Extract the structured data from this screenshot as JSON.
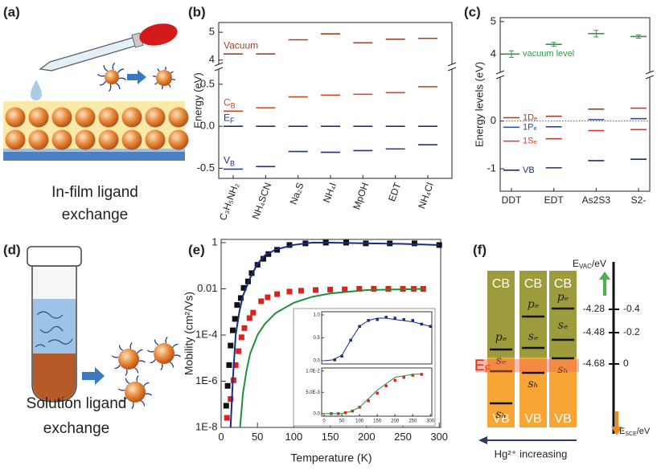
{
  "panels": {
    "a": {
      "label": "(a)",
      "caption": [
        "In-film ligand",
        "exchange"
      ]
    },
    "b": {
      "label": "(b)"
    },
    "c": {
      "label": "(c)"
    },
    "d": {
      "label": "(d)",
      "caption": [
        "Solution ligand",
        "exchange"
      ]
    },
    "e": {
      "label": "(e)"
    },
    "f": {
      "label": "(f)",
      "columns": [
        {
          "top": "CB",
          "bottom": "VB",
          "levels": [
            "pₑ",
            "sₑ",
            "sₕ"
          ]
        },
        {
          "top": "CB",
          "bottom": "VB",
          "levels": [
            "pₑ",
            "sₑ",
            "sₕ"
          ]
        },
        {
          "top": "CB",
          "bottom": "VB",
          "levels": [
            "pₑ",
            "sₑ",
            "sₕ"
          ]
        }
      ],
      "fermi": {
        "symbol": "E",
        "sub": "F"
      },
      "vac_axis": {
        "symbol": "E",
        "sub": "VAC",
        "unit": "/eV",
        "ticks": [
          "-4.28",
          "-4.48",
          "-4.68"
        ]
      },
      "sce_axis": {
        "symbol": "E",
        "sub": "SCE",
        "unit": "/eV",
        "ticks": [
          "-0.4",
          "-0.2",
          "0"
        ]
      },
      "trend": "Hg²⁺ increasing"
    }
  },
  "chart_data": [
    {
      "type": "levels",
      "ylabel": "Energy (eV)",
      "categories": [
        "C₃H₅NH₂",
        "NH₄SCN",
        "Na₂S",
        "NH₄I",
        "MpOH",
        "EDT",
        "NH₄Cl"
      ],
      "ylim": [
        -0.62,
        0.68
      ],
      "yticks": [
        -0.5,
        {
          "value": 0,
          "label": "0.0"
        },
        0.5
      ],
      "y2lim": [
        3.85,
        5.35
      ],
      "y2ticks": [
        4,
        5
      ],
      "series": [
        {
          "name": "Vacuum",
          "color": "#a0412b",
          "axis": "y2",
          "values": [
            4.22,
            4.22,
            4.73,
            4.94,
            4.62,
            4.75,
            4.78
          ]
        },
        {
          "name": "CB",
          "color": "#cc4526",
          "values": [
            0.18,
            0.22,
            0.35,
            0.37,
            0.38,
            0.4,
            0.47
          ]
        },
        {
          "name": "EF",
          "color": "#1f2f8a",
          "values": [
            0,
            0,
            0,
            0,
            0,
            0,
            0
          ]
        },
        {
          "name": "VB",
          "color": "#1f2f8a",
          "values": [
            -0.51,
            -0.48,
            -0.3,
            -0.31,
            -0.29,
            -0.27,
            -0.22
          ]
        }
      ]
    },
    {
      "type": "levels",
      "ylabel": "Energy levels (eV)",
      "categories": [
        "DDT",
        "EDT",
        "As2S3",
        "S2-"
      ],
      "ylim": [
        -1.47,
        0.92
      ],
      "yticks": [
        -1,
        0
      ],
      "y2lim": [
        3.44,
        5.12
      ],
      "y2ticks": [
        4,
        5
      ],
      "reference_line": 0,
      "series": [
        {
          "name": "vacuum level",
          "color": "#2e9a48",
          "axis": "y2",
          "values": [
            4.0,
            4.3,
            4.63,
            4.54
          ],
          "errors": [
            0.1,
            0.06,
            0.1,
            0.05
          ]
        },
        {
          "name": "1Dₑ",
          "color": "#a0412b",
          "values": [
            0.07,
            0.1,
            0.25,
            0.27
          ]
        },
        {
          "name": "1Pₑ",
          "color": "#2b4aa0",
          "values": [
            -0.13,
            -0.12,
            0.03,
            0.05
          ]
        },
        {
          "name": "1Sₑ",
          "color": "#d83a2a",
          "values": [
            -0.42,
            -0.37,
            -0.2,
            -0.18
          ]
        },
        {
          "name": "VB",
          "color": "#1f2f6a",
          "values": [
            -1.03,
            -0.98,
            -0.83,
            -0.8
          ]
        }
      ]
    },
    {
      "type": "scatter",
      "xlabel": "Temperature (K)",
      "ylabel": "Mobility (cm²/Vs)",
      "yscale": "log",
      "xlim": [
        0,
        302
      ],
      "xticks": [
        0,
        50,
        100,
        150,
        200,
        250,
        300
      ],
      "ylim": [
        1e-08,
        1.38
      ],
      "yticks": [
        {
          "value": 1e-08,
          "label": "1E-8"
        },
        {
          "value": 1e-06,
          "label": "1E-6"
        },
        {
          "value": 0.0001,
          "label": "1E-4"
        },
        0.01,
        1
      ],
      "series": [
        {
          "mode": "markers",
          "color": "#111111",
          "x": [
            7,
            9,
            11,
            13,
            16,
            19,
            22,
            27,
            31,
            37,
            42,
            50,
            58,
            65,
            77,
            94,
            116,
            144,
            172,
            199,
            232,
            266,
            300
          ],
          "values": [
            8.7e-08,
            6.3e-07,
            5e-06,
            3.5e-05,
            0.00016,
            0.0005,
            0.002,
            0.004,
            0.011,
            0.021,
            0.048,
            0.11,
            0.2,
            0.32,
            0.49,
            0.79,
            0.93,
            1,
            1,
            0.93,
            0.93,
            0.93,
            0.79
          ]
        },
        {
          "mode": "markers",
          "color": "#e0201a",
          "x": [
            8,
            13,
            17,
            20,
            24,
            28,
            32,
            39,
            44,
            55,
            64,
            77,
            94,
            110,
            130,
            150,
            170,
            190,
            210,
            230,
            250,
            265,
            278
          ],
          "values": [
            2.6e-08,
            1.7e-07,
            1.1e-06,
            5e-06,
            2e-05,
            8e-05,
            0.0002,
            0.00054,
            0.00093,
            0.0029,
            0.0043,
            0.0059,
            0.0076,
            0.0083,
            0.0089,
            0.0093,
            0.0095,
            0.01,
            0.01,
            0.01,
            0.01,
            0.01,
            0.01
          ]
        },
        {
          "mode": "line",
          "color": "#1a2a8a",
          "x": [
            13,
            16,
            20,
            25,
            30,
            40,
            50,
            60,
            75,
            100,
            125,
            150,
            200,
            250,
            300
          ],
          "values": [
            1e-08,
            1e-06,
            0.0001,
            0.001,
            0.005,
            0.03,
            0.12,
            0.28,
            0.5,
            0.8,
            1,
            1,
            0.93,
            0.89,
            0.79
          ]
        },
        {
          "mode": "line",
          "color": "#1f8f3a",
          "x": [
            26,
            30,
            35,
            40,
            50,
            60,
            75,
            100,
            125,
            150,
            200,
            250,
            280
          ],
          "values": [
            1e-08,
            3e-07,
            3e-06,
            1.6e-05,
            0.0001,
            0.0003,
            0.0009,
            0.0025,
            0.0045,
            0.0063,
            0.0089,
            0.0095,
            0.01
          ]
        }
      ]
    },
    {
      "type": "scatter",
      "xlim": [
        -7,
        304
      ],
      "ylim": [
        -0.07,
        1.07
      ],
      "yticks": [
        {
          "value": 0,
          "label": "0.0"
        },
        0.5,
        {
          "value": 1,
          "label": "1.0"
        }
      ],
      "series": [
        {
          "mode": "markers",
          "color": "#1a2a8a",
          "x": [
            30,
            50,
            75,
            100,
            125,
            150,
            175,
            200,
            225,
            250,
            275,
            300
          ],
          "values": [
            0.02,
            0.1,
            0.45,
            0.75,
            0.88,
            0.9,
            0.95,
            0.93,
            0.9,
            0.88,
            0.8,
            0.75
          ]
        },
        {
          "mode": "line",
          "color": "#1a2a8a",
          "x": [
            0,
            25,
            50,
            75,
            100,
            125,
            150,
            175,
            200,
            250,
            300
          ],
          "values": [
            0,
            0.02,
            0.12,
            0.45,
            0.75,
            0.88,
            0.93,
            0.93,
            0.9,
            0.85,
            0.75
          ]
        }
      ]
    },
    {
      "type": "scatter",
      "xlim": [
        -7,
        304
      ],
      "xticks": [
        0,
        50,
        100,
        150,
        200,
        250,
        300
      ],
      "ylim": [
        -0.0006,
        0.0107
      ],
      "yticks": [
        {
          "value": 0,
          "label": "0.0"
        },
        {
          "value": 0.005,
          "label": "5.0E-3"
        },
        {
          "value": 0.01,
          "label": "1.0E-2"
        }
      ],
      "series": [
        {
          "mode": "markers",
          "color": "#e0201a",
          "x": [
            20,
            40,
            60,
            80,
            100,
            125,
            150,
            175,
            200,
            225,
            250,
            275
          ],
          "values": [
            0,
            0,
            0.0002,
            0.0006,
            0.0015,
            0.003,
            0.0048,
            0.0065,
            0.0078,
            0.0085,
            0.009,
            0.0092
          ]
        },
        {
          "mode": "line",
          "color": "#1f8f3a",
          "x": [
            0,
            50,
            75,
            100,
            150,
            200,
            250,
            280
          ],
          "values": [
            0,
            0,
            0.0005,
            0.0015,
            0.0055,
            0.0085,
            0.0092,
            0.0093
          ]
        }
      ]
    }
  ]
}
